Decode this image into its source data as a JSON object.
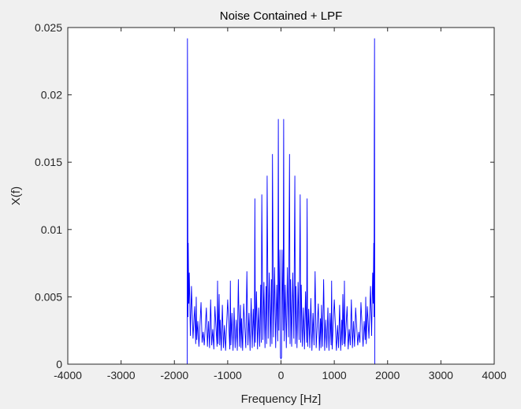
{
  "chart_data": {
    "type": "line",
    "title": "Noise Contained + LPF",
    "xlabel": "Frequency [Hz]",
    "ylabel": "X(f)",
    "xlim": [
      -4000,
      4000
    ],
    "ylim": [
      0,
      0.025
    ],
    "grid": false,
    "legend": "none",
    "xticks": [
      -4000,
      -3000,
      -2000,
      -1000,
      0,
      1000,
      2000,
      3000,
      4000
    ],
    "xtick_labels": [
      "-4000",
      "-3000",
      "-2000",
      "-1000",
      "0",
      "1000",
      "2000",
      "3000",
      "4000"
    ],
    "yticks": [
      0,
      0.005,
      0.01,
      0.015,
      0.02,
      0.025
    ],
    "ytick_labels": [
      "0",
      "0.005",
      "0.01",
      "0.015",
      "0.02",
      "0.025"
    ],
    "series": [
      {
        "color": "#0000ff",
        "x": [
          -4000,
          -1760,
          -1755,
          -1750,
          -1745,
          -1740,
          -1730,
          -1720,
          -1700,
          -1680,
          -1650,
          -1620,
          -1600,
          -1590,
          -1580,
          -1560,
          -1540,
          -1500,
          -1480,
          -1460,
          -1440,
          -1400,
          -1380,
          -1360,
          -1340,
          -1320,
          -1300,
          -1280,
          -1260,
          -1240,
          -1200,
          -1190,
          -1180,
          -1160,
          -1150,
          -1140,
          -1120,
          -1100,
          -1080,
          -1060,
          -1040,
          -1000,
          -960,
          -950,
          -940,
          -920,
          -900,
          -880,
          -860,
          -840,
          -820,
          -800,
          -780,
          -760,
          -750,
          -740,
          -720,
          -700,
          -660,
          -640,
          -620,
          -600,
          -580,
          -560,
          -540,
          -520,
          -500,
          -490,
          -480,
          -460,
          -440,
          -420,
          -400,
          -380,
          -370,
          -360,
          -340,
          -320,
          -300,
          -280,
          -270,
          -260,
          -240,
          -220,
          -200,
          -180,
          -170,
          -160,
          -140,
          -120,
          -100,
          -80,
          -60,
          -50,
          -40,
          -20,
          -10,
          0,
          10,
          20,
          40,
          50,
          60,
          80,
          100,
          120,
          140,
          160,
          170,
          180,
          200,
          220,
          240,
          260,
          270,
          280,
          300,
          320,
          340,
          360,
          370,
          380,
          400,
          420,
          440,
          460,
          480,
          490,
          500,
          520,
          540,
          560,
          580,
          600,
          620,
          640,
          660,
          700,
          720,
          740,
          750,
          760,
          780,
          800,
          820,
          840,
          860,
          880,
          900,
          920,
          940,
          950,
          960,
          1000,
          1040,
          1060,
          1080,
          1100,
          1120,
          1140,
          1150,
          1160,
          1180,
          1190,
          1200,
          1240,
          1260,
          1280,
          1300,
          1320,
          1340,
          1360,
          1380,
          1400,
          1440,
          1460,
          1480,
          1500,
          1540,
          1560,
          1580,
          1590,
          1600,
          1620,
          1650,
          1680,
          1700,
          1720,
          1730,
          1740,
          1745,
          1750,
          1755,
          1760,
          4000
        ],
        "y": [
          0,
          0,
          0.0242,
          0.017,
          0.0035,
          0.009,
          0.0045,
          0.0068,
          0.0021,
          0.0058,
          0.0019,
          0.0043,
          0.0015,
          0.005,
          0.0018,
          0.0032,
          0.0013,
          0.0046,
          0.0016,
          0.0024,
          0.0014,
          0.0042,
          0.0013,
          0.0032,
          0.0012,
          0.0048,
          0.0014,
          0.0026,
          0.0011,
          0.0043,
          0.0013,
          0.0062,
          0.0015,
          0.0052,
          0.0014,
          0.0033,
          0.001,
          0.0044,
          0.0012,
          0.0029,
          0.001,
          0.0048,
          0.0011,
          0.0062,
          0.0014,
          0.0038,
          0.001,
          0.0042,
          0.0012,
          0.0033,
          0.001,
          0.0063,
          0.0013,
          0.0044,
          0.0012,
          0.0034,
          0.001,
          0.0045,
          0.0012,
          0.0069,
          0.0014,
          0.0038,
          0.001,
          0.0049,
          0.0012,
          0.0041,
          0.0013,
          0.0123,
          0.0016,
          0.0054,
          0.0011,
          0.0042,
          0.0013,
          0.0059,
          0.0016,
          0.0126,
          0.0018,
          0.0061,
          0.0012,
          0.0058,
          0.0015,
          0.014,
          0.0019,
          0.0068,
          0.0013,
          0.0063,
          0.0015,
          0.0156,
          0.002,
          0.0072,
          0.0012,
          0.0059,
          0.0017,
          0.0182,
          0.0025,
          0.0085,
          0.0005,
          0.0004,
          0.0005,
          0.0085,
          0.0025,
          0.0182,
          0.0017,
          0.0059,
          0.0012,
          0.0072,
          0.002,
          0.0156,
          0.0015,
          0.0063,
          0.0013,
          0.0068,
          0.0019,
          0.014,
          0.0015,
          0.0058,
          0.0012,
          0.0061,
          0.0018,
          0.0126,
          0.0016,
          0.0059,
          0.0013,
          0.0042,
          0.0011,
          0.0054,
          0.0016,
          0.0123,
          0.0013,
          0.0041,
          0.0012,
          0.0049,
          0.001,
          0.0038,
          0.0014,
          0.0069,
          0.0012,
          0.0045,
          0.001,
          0.0034,
          0.0012,
          0.0044,
          0.0013,
          0.0063,
          0.001,
          0.0033,
          0.0012,
          0.0042,
          0.001,
          0.0038,
          0.0014,
          0.0062,
          0.0011,
          0.0048,
          0.001,
          0.0029,
          0.0012,
          0.0044,
          0.001,
          0.0033,
          0.0014,
          0.0052,
          0.0015,
          0.0062,
          0.0013,
          0.0043,
          0.0011,
          0.0026,
          0.0014,
          0.0048,
          0.0012,
          0.0032,
          0.0013,
          0.0042,
          0.0014,
          0.0024,
          0.0016,
          0.0046,
          0.0013,
          0.0032,
          0.0018,
          0.005,
          0.0015,
          0.0043,
          0.0019,
          0.0058,
          0.0021,
          0.0068,
          0.0045,
          0.009,
          0.0035,
          0.017,
          0.0242,
          0,
          0
        ]
      }
    ]
  }
}
